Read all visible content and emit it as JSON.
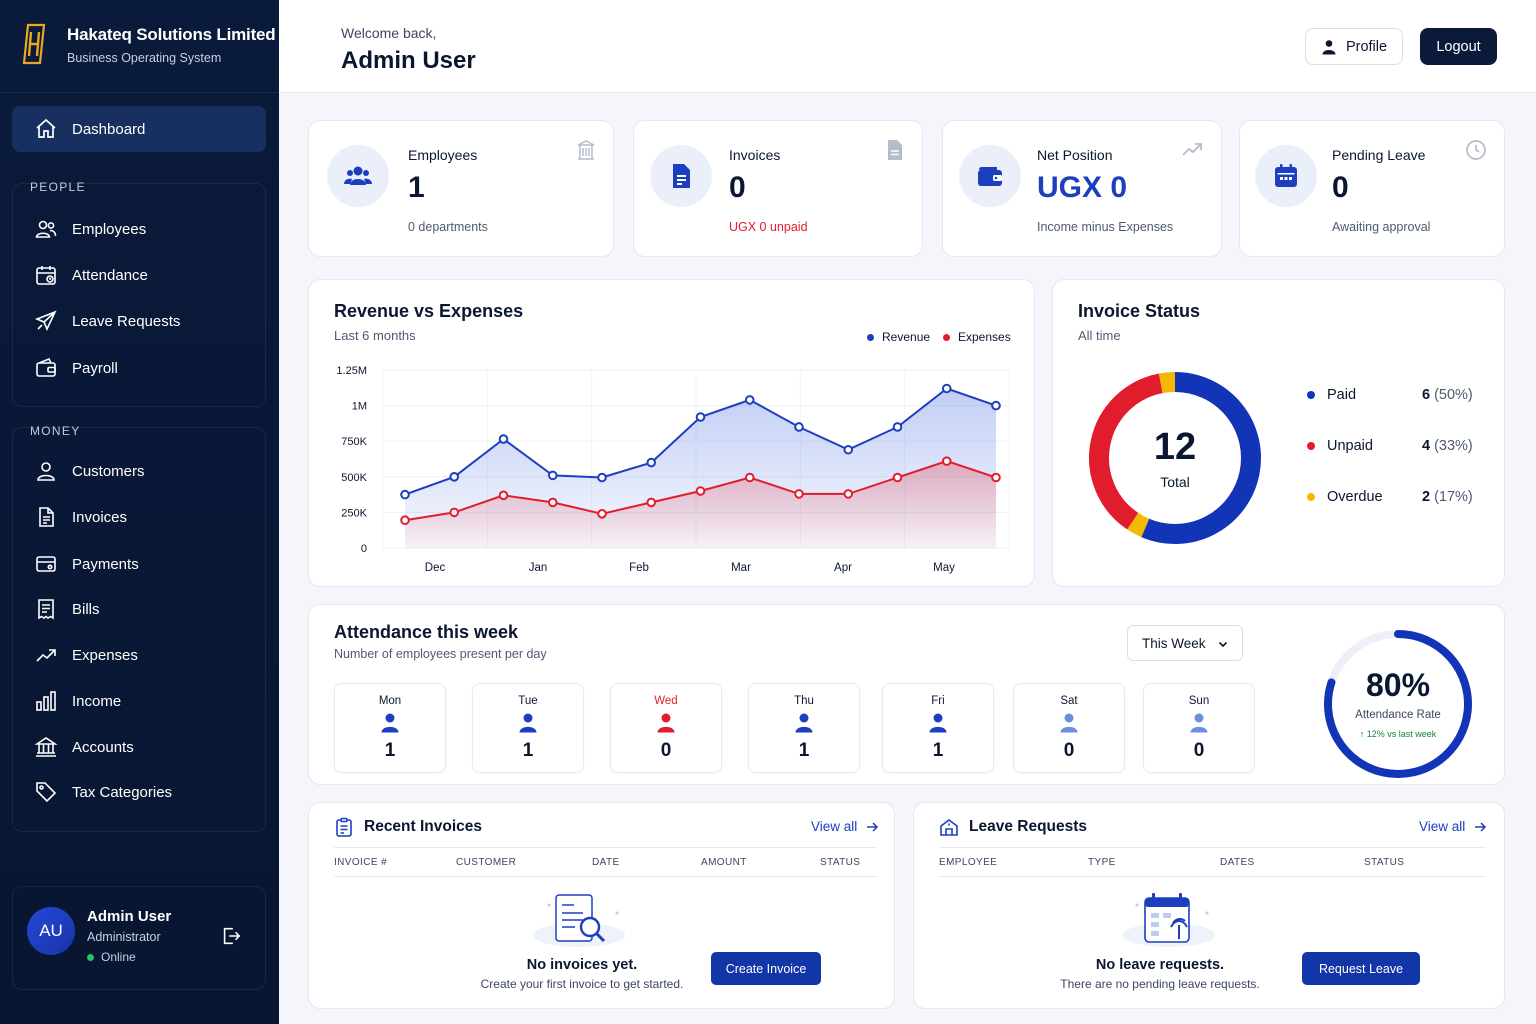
{
  "brand": {
    "name": "Hakateq Solutions Limited",
    "subtitle": "Business Operating System"
  },
  "sidebar": {
    "dashboard": {
      "label": "Dashboard",
      "icon": "home-icon"
    },
    "groups": [
      {
        "title": "PEOPLE",
        "items": [
          {
            "label": "Employees",
            "icon": "users-icon"
          },
          {
            "label": "Attendance",
            "icon": "calendar-icon"
          },
          {
            "label": "Leave Requests",
            "icon": "plane-icon"
          },
          {
            "label": "Payroll",
            "icon": "wallet-icon"
          }
        ]
      },
      {
        "title": "MONEY",
        "items": [
          {
            "label": "Customers",
            "icon": "user-icon"
          },
          {
            "label": "Invoices",
            "icon": "document-icon"
          },
          {
            "label": "Payments",
            "icon": "card-icon"
          },
          {
            "label": "Bills",
            "icon": "receipt-icon"
          },
          {
            "label": "Expenses",
            "icon": "trend-up-icon"
          },
          {
            "label": "Income",
            "icon": "bar-chart-icon"
          },
          {
            "label": "Accounts",
            "icon": "bank-icon"
          },
          {
            "label": "Tax Categories",
            "icon": "tag-icon"
          }
        ]
      }
    ],
    "user": {
      "initials": "AU",
      "name": "Admin User",
      "role": "Administrator",
      "status": "Online"
    }
  },
  "header": {
    "welcome": "Welcome back,",
    "title": "Admin User",
    "profile_label": "Profile",
    "logout_label": "Logout"
  },
  "stats": [
    {
      "label": "Employees",
      "value": "1",
      "sub": "0 departments"
    },
    {
      "label": "Invoices",
      "value": "0",
      "sub": "UGX 0 unpaid"
    },
    {
      "label": "Net Position",
      "value": "UGX 0",
      "sub": "Income minus Expenses"
    },
    {
      "label": "Pending Leave",
      "value": "0",
      "sub": "Awaiting approval"
    }
  ],
  "chart_data": [
    {
      "type": "line",
      "title": "Revenue vs Expenses",
      "subtitle": "Last 6 months",
      "x_tick_labels": [
        "Dec",
        "Jan",
        "Feb",
        "Mar",
        "Apr",
        "May"
      ],
      "y_tick_labels": [
        "0",
        "250K",
        "500K",
        "750K",
        "1M",
        "1.25M"
      ],
      "ylim": [
        0,
        1250000
      ],
      "grid": true,
      "legend_position": "top-right",
      "series": [
        {
          "name": "Revenue",
          "color": "#1d3fbf",
          "values": [
            375000,
            500000,
            765000,
            510000,
            495000,
            600000,
            920000,
            1040000,
            850000,
            690000,
            850000,
            1120000,
            1000000
          ]
        },
        {
          "name": "Expenses",
          "color": "#e11d2d",
          "values": [
            195000,
            250000,
            370000,
            320000,
            240000,
            320000,
            400000,
            495000,
            380000,
            380000,
            495000,
            610000,
            495000
          ]
        }
      ]
    },
    {
      "type": "pie",
      "title": "Invoice Status",
      "subtitle": "All time",
      "center_value": "12",
      "center_label": "Total",
      "slices": [
        {
          "name": "Paid",
          "count": "6",
          "percent": "(50%)",
          "value": 6,
          "color": "#1235b8"
        },
        {
          "name": "Unpaid",
          "count": "4",
          "percent": "(33%)",
          "value": 4,
          "color": "#e11d2d"
        },
        {
          "name": "Overdue",
          "count": "2",
          "percent": "(17%)",
          "value": 2,
          "color": "#f5b800"
        }
      ]
    }
  ],
  "attendance": {
    "title": "Attendance this week",
    "subtitle": "Number of employees present per day",
    "period": "This Week",
    "days": [
      {
        "name": "Mon",
        "value": "1"
      },
      {
        "name": "Tue",
        "value": "1"
      },
      {
        "name": "Wed",
        "value": "0"
      },
      {
        "name": "Thu",
        "value": "1"
      },
      {
        "name": "Fri",
        "value": "1"
      },
      {
        "name": "Sat",
        "value": "0"
      },
      {
        "name": "Sun",
        "value": "0"
      }
    ],
    "rate": "80%",
    "rate_fraction": 0.8,
    "rate_label": "Attendance Rate",
    "rate_change": "↑ 12% vs last week"
  },
  "recent_invoices": {
    "title": "Recent Invoices",
    "view_all": "View all",
    "columns": [
      "INVOICE #",
      "CUSTOMER",
      "DATE",
      "AMOUNT",
      "STATUS"
    ],
    "empty_title": "No invoices yet.",
    "empty_sub": "Create your first invoice to get started.",
    "button": "Create Invoice"
  },
  "leave_requests": {
    "title": "Leave Requests",
    "view_all": "View all",
    "columns": [
      "EMPLOYEE",
      "TYPE",
      "DATES",
      "STATUS"
    ],
    "empty_title": "No leave requests.",
    "empty_sub": "There are no pending leave requests.",
    "button": "Request Leave"
  }
}
